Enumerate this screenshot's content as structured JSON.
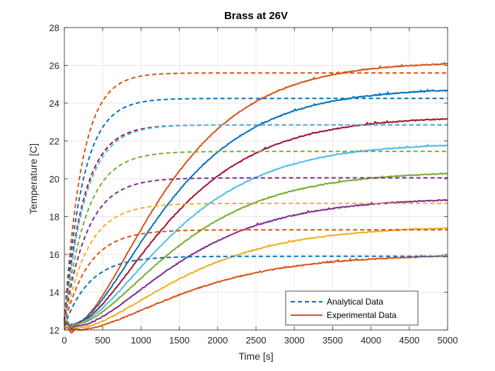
{
  "chart_data": {
    "type": "line",
    "title": "Brass at 26V",
    "xlabel": "Time [s]",
    "ylabel": "Temperature [C]",
    "xlim": [
      0,
      5000
    ],
    "ylim": [
      12,
      28
    ],
    "xticks": [
      0,
      500,
      1000,
      1500,
      2000,
      2500,
      3000,
      3500,
      4000,
      4500,
      5000
    ],
    "yticks": [
      12,
      14,
      16,
      18,
      20,
      22,
      24,
      26,
      28
    ],
    "grid": true,
    "legend_position": "bottom-right",
    "legend": [
      {
        "label": "Analytical Data",
        "style": "dashed",
        "color": "#0072BD"
      },
      {
        "label": "Experimental Data",
        "style": "solid",
        "color": "#D95319"
      }
    ],
    "series": [
      {
        "color": "#D95319",
        "analytical": {
          "start": 12.5,
          "final": 25.6,
          "tau": 230
        },
        "experimental": {
          "start": 12.2,
          "final": 26.2,
          "delay": 80,
          "tau": 720
        }
      },
      {
        "color": "#0072BD",
        "analytical": {
          "start": 12.5,
          "final": 24.25,
          "tau": 245
        },
        "experimental": {
          "start": 12.3,
          "final": 24.8,
          "delay": 90,
          "tau": 740
        }
      },
      {
        "color": "#A2142F",
        "analytical": {
          "start": 12.5,
          "final": 22.85,
          "tau": 260
        },
        "experimental": {
          "start": 12.3,
          "final": 23.3,
          "delay": 100,
          "tau": 760
        }
      },
      {
        "color": "#4DBEEE",
        "analytical": {
          "start": 12.4,
          "final": 22.85,
          "tau": 275
        },
        "experimental": {
          "start": 12.3,
          "final": 21.9,
          "delay": 110,
          "tau": 780
        }
      },
      {
        "color": "#77AC30",
        "analytical": {
          "start": 12.4,
          "final": 21.45,
          "tau": 290
        },
        "experimental": {
          "start": 12.3,
          "final": 20.4,
          "delay": 120,
          "tau": 800
        }
      },
      {
        "color": "#7E2F8E",
        "analytical": {
          "start": 12.4,
          "final": 20.05,
          "tau": 300
        },
        "experimental": {
          "start": 12.2,
          "final": 19.0,
          "delay": 130,
          "tau": 820
        }
      },
      {
        "color": "#EDB120",
        "analytical": {
          "start": 12.3,
          "final": 18.7,
          "tau": 310
        },
        "experimental": {
          "start": 12.1,
          "final": 17.5,
          "delay": 140,
          "tau": 840
        }
      },
      {
        "color": "#D95319",
        "analytical": {
          "start": 12.3,
          "final": 17.3,
          "tau": 320
        },
        "experimental": {
          "start": 12.0,
          "final": 16.0,
          "delay": 150,
          "tau": 860
        }
      },
      {
        "color": "#0072BD",
        "analytical": {
          "start": 12.2,
          "final": 15.9,
          "tau": 330
        },
        "experimental": null
      }
    ]
  }
}
